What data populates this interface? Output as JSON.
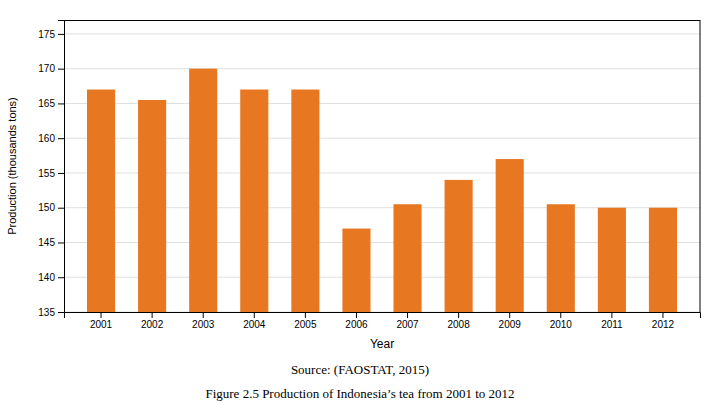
{
  "chart_data": {
    "type": "bar",
    "categories": [
      "2001",
      "2002",
      "2003",
      "2004",
      "2005",
      "2006",
      "2007",
      "2008",
      "2009",
      "2010",
      "2011",
      "2012"
    ],
    "values": [
      167.0,
      165.5,
      170.0,
      167.0,
      167.0,
      147.0,
      150.5,
      154.0,
      157.0,
      150.5,
      150.0,
      150.0
    ],
    "color": "#E87722",
    "xlabel": "Year",
    "ylabel": "Production (thousands tons)",
    "ylim": [
      135,
      177
    ],
    "yticks": [
      135,
      140,
      145,
      150,
      155,
      160,
      165,
      170,
      175
    ],
    "grid": true,
    "annotations": [
      "Source: (FAOSTAT, 2015)",
      "Figure 2.5 Production of Indonesia’s tea from 2001 to 2012"
    ]
  }
}
